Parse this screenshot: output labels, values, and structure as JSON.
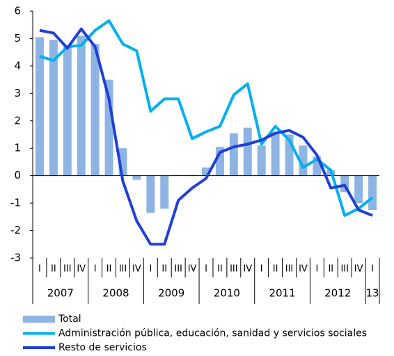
{
  "chart_data": {
    "type": "combo",
    "categories": [
      "I",
      "II",
      "III",
      "IV",
      "I",
      "II",
      "III",
      "IV",
      "I",
      "II",
      "III",
      "IV",
      "I",
      "II",
      "III",
      "IV",
      "I",
      "II",
      "III",
      "IV",
      "I",
      "II",
      "III",
      "IV",
      "I"
    ],
    "years": [
      "2007",
      "2008",
      "2009",
      "2010",
      "2011",
      "2012",
      "13"
    ],
    "ylim": [
      -3,
      6
    ],
    "yticks": [
      -3,
      -2,
      -1,
      0,
      1,
      2,
      3,
      4,
      5,
      6
    ],
    "legend": "bottom",
    "series": [
      {
        "name": "Total",
        "type": "bar",
        "color": "#8db4e2",
        "values": [
          5.05,
          4.95,
          4.7,
          5.1,
          4.8,
          3.5,
          1.0,
          -0.15,
          -1.35,
          -1.2,
          0.03,
          0.02,
          0.3,
          1.05,
          1.55,
          1.75,
          1.1,
          1.6,
          1.5,
          1.1,
          0.7,
          0.2,
          -0.6,
          -1.0,
          -1.25
        ]
      },
      {
        "name": "Administración pública, educación, sanidad y servicios sociales",
        "type": "line",
        "color": "#00b0f0",
        "values": [
          4.35,
          4.2,
          4.7,
          4.75,
          5.3,
          5.65,
          4.8,
          4.55,
          2.35,
          2.8,
          2.8,
          1.35,
          1.6,
          1.8,
          2.95,
          3.35,
          1.15,
          1.8,
          1.3,
          0.3,
          0.6,
          0.2,
          -1.45,
          -1.2,
          -0.8
        ]
      },
      {
        "name": "Resto de servicios",
        "type": "line",
        "color": "#1f3fd6",
        "values": [
          5.3,
          5.2,
          4.65,
          5.35,
          4.7,
          2.8,
          -0.2,
          -1.65,
          -2.5,
          -2.5,
          -0.9,
          -0.45,
          -0.1,
          0.85,
          1.05,
          1.15,
          1.3,
          1.55,
          1.65,
          1.4,
          0.75,
          -0.45,
          -0.35,
          -1.25,
          -1.45
        ]
      }
    ]
  }
}
